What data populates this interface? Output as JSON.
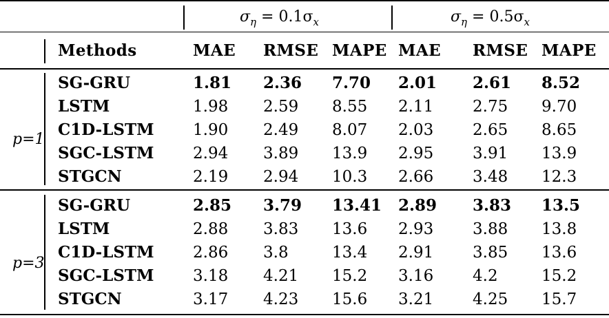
{
  "header": {
    "group1_label": "σ",
    "group1_sub": "η",
    "group1_rest": " = 0.1σ",
    "group1_tail": "x",
    "group2_label": "σ",
    "group2_sub": "η",
    "group2_rest": " = 0.5σ",
    "group2_tail": "x",
    "methods": "Methods",
    "col_mae": "MAE",
    "col_rmse": "RMSE",
    "col_mape": "MAPE",
    "col_mae2": "MAE",
    "col_rmse2": "RMSE",
    "col_mape2": "MAPE"
  },
  "blocks": [
    {
      "p_label": "p=1",
      "rows": [
        {
          "method": "SG-GRU",
          "v": [
            "1.81",
            "2.36",
            "7.70",
            "2.01",
            "2.61",
            "8.52"
          ]
        },
        {
          "method": "LSTM",
          "v": [
            "1.98",
            "2.59",
            "8.55",
            "2.11",
            "2.75",
            "9.70"
          ]
        },
        {
          "method": "C1D-LSTM",
          "v": [
            "1.90",
            "2.49",
            "8.07",
            "2.03",
            "2.65",
            "8.65"
          ]
        },
        {
          "method": "SGC-LSTM",
          "v": [
            "2.94",
            "3.89",
            "13.9",
            "2.95",
            "3.91",
            "13.9"
          ]
        },
        {
          "method": "STGCN",
          "v": [
            "2.19",
            "2.94",
            "10.3",
            "2.66",
            "3.48",
            "12.3"
          ]
        }
      ]
    },
    {
      "p_label": "p=3",
      "rows": [
        {
          "method": "SG-GRU",
          "v": [
            "2.85",
            "3.79",
            "13.41",
            "2.89",
            "3.83",
            "13.5"
          ]
        },
        {
          "method": "LSTM",
          "v": [
            "2.88",
            "3.83",
            "13.6",
            "2.93",
            "3.88",
            "13.8"
          ]
        },
        {
          "method": "C1D-LSTM",
          "v": [
            "2.86",
            "3.8",
            "13.4",
            "2.91",
            "3.85",
            "13.6"
          ]
        },
        {
          "method": "SGC-LSTM",
          "v": [
            "3.18",
            "4.21",
            "15.2",
            "3.16",
            "4.2",
            "15.2"
          ]
        },
        {
          "method": "STGCN",
          "v": [
            "3.17",
            "4.23",
            "15.6",
            "3.21",
            "4.25",
            "15.7"
          ]
        }
      ]
    }
  ]
}
